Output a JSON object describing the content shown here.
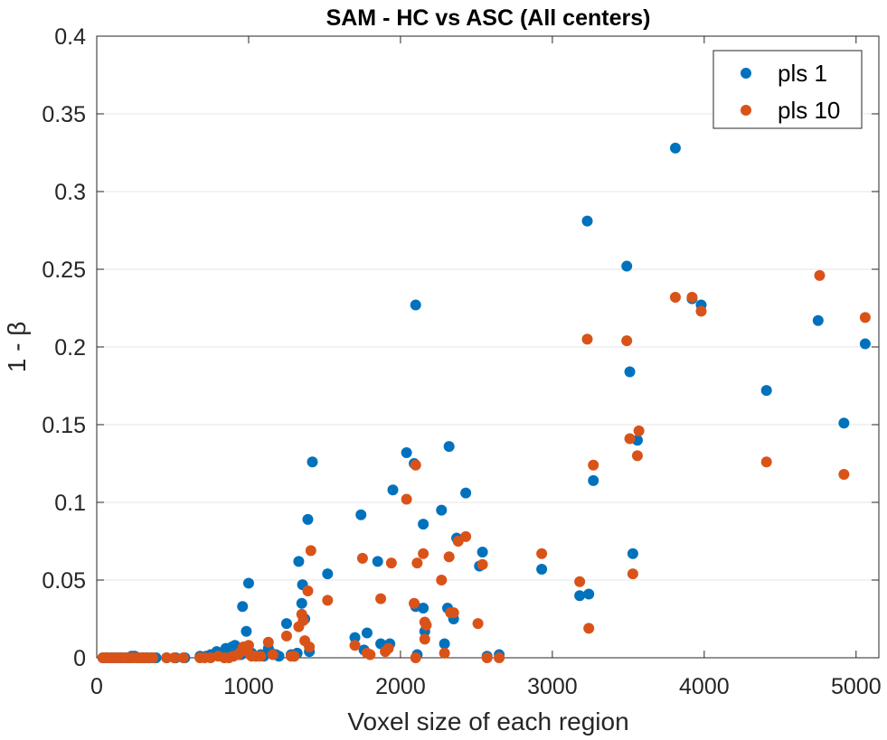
{
  "chart_data": {
    "type": "scatter",
    "title": "SAM - HC vs ASC (All centers)",
    "xlabel": "Voxel size of each region",
    "ylabel": "1 - β",
    "xlim": [
      0,
      5150
    ],
    "ylim": [
      0,
      0.4
    ],
    "x_ticks": [
      "0",
      "1000",
      "2000",
      "3000",
      "4000",
      "5000"
    ],
    "y_ticks": [
      "0",
      "0.05",
      "0.1",
      "0.15",
      "0.2",
      "0.25",
      "0.3",
      "0.35",
      "0.4"
    ],
    "grid": true,
    "legend_position": "top-right",
    "series": [
      {
        "name": "pls 1",
        "color": "#0072BD",
        "points": [
          [
            40,
            0
          ],
          [
            70,
            0
          ],
          [
            100,
            0
          ],
          [
            130,
            0
          ],
          [
            160,
            0
          ],
          [
            190,
            0
          ],
          [
            210,
            0
          ],
          [
            230,
            0.001
          ],
          [
            250,
            0.001
          ],
          [
            270,
            0
          ],
          [
            300,
            0
          ],
          [
            330,
            0
          ],
          [
            360,
            0
          ],
          [
            390,
            0
          ],
          [
            460,
            0
          ],
          [
            520,
            0
          ],
          [
            580,
            0
          ],
          [
            680,
            0.001
          ],
          [
            720,
            0.001
          ],
          [
            750,
            0.002
          ],
          [
            790,
            0.004
          ],
          [
            820,
            0.003
          ],
          [
            850,
            0.006
          ],
          [
            870,
            0.002
          ],
          [
            890,
            0.007
          ],
          [
            910,
            0.008
          ],
          [
            930,
            0.005
          ],
          [
            950,
            0.002
          ],
          [
            960,
            0.033
          ],
          [
            985,
            0.017
          ],
          [
            1000,
            0.048
          ],
          [
            1020,
            0.003
          ],
          [
            1050,
            0.001
          ],
          [
            1080,
            0.002
          ],
          [
            1100,
            0.001
          ],
          [
            1130,
            0.006
          ],
          [
            1150,
            0.003
          ],
          [
            1180,
            0.002
          ],
          [
            1200,
            0.001
          ],
          [
            1250,
            0.022
          ],
          [
            1280,
            0.002
          ],
          [
            1300,
            0.001
          ],
          [
            1320,
            0.003
          ],
          [
            1330,
            0.062
          ],
          [
            1350,
            0.035
          ],
          [
            1355,
            0.047
          ],
          [
            1370,
            0.025
          ],
          [
            1390,
            0.089
          ],
          [
            1420,
            0.126
          ],
          [
            1400,
            0.004
          ],
          [
            1520,
            0.054
          ],
          [
            1700,
            0.013
          ],
          [
            1740,
            0.092
          ],
          [
            1760,
            0.005
          ],
          [
            1780,
            0.016
          ],
          [
            1850,
            0.062
          ],
          [
            1870,
            0.009
          ],
          [
            1900,
            0.007
          ],
          [
            1930,
            0.009
          ],
          [
            1950,
            0.108
          ],
          [
            2040,
            0.132
          ],
          [
            2090,
            0.125
          ],
          [
            2100,
            0.227
          ],
          [
            2100,
            0.033
          ],
          [
            2110,
            0.002
          ],
          [
            2150,
            0.086
          ],
          [
            2150,
            0.032
          ],
          [
            2160,
            0.017
          ],
          [
            2270,
            0.095
          ],
          [
            2290,
            0.009
          ],
          [
            2310,
            0.032
          ],
          [
            2320,
            0.136
          ],
          [
            2350,
            0.025
          ],
          [
            2370,
            0.077
          ],
          [
            2430,
            0.106
          ],
          [
            2520,
            0.059
          ],
          [
            2540,
            0.068
          ],
          [
            2570,
            0.001
          ],
          [
            2650,
            0.002
          ],
          [
            2930,
            0.057
          ],
          [
            3180,
            0.04
          ],
          [
            3230,
            0.281
          ],
          [
            3240,
            0.041
          ],
          [
            3270,
            0.114
          ],
          [
            3490,
            0.252
          ],
          [
            3510,
            0.184
          ],
          [
            3530,
            0.067
          ],
          [
            3560,
            0.14
          ],
          [
            3810,
            0.328
          ],
          [
            3920,
            0.231
          ],
          [
            3980,
            0.227
          ],
          [
            4410,
            0.172
          ],
          [
            4750,
            0.217
          ],
          [
            4920,
            0.151
          ],
          [
            5060,
            0.202
          ]
        ]
      },
      {
        "name": "pls 10",
        "color": "#D95319",
        "points": [
          [
            40,
            0
          ],
          [
            60,
            0
          ],
          [
            90,
            0
          ],
          [
            120,
            0
          ],
          [
            150,
            0
          ],
          [
            170,
            0
          ],
          [
            200,
            0
          ],
          [
            220,
            0
          ],
          [
            240,
            0
          ],
          [
            260,
            0
          ],
          [
            280,
            0
          ],
          [
            310,
            0
          ],
          [
            340,
            0
          ],
          [
            370,
            0
          ],
          [
            460,
            0
          ],
          [
            510,
            0
          ],
          [
            570,
            0
          ],
          [
            680,
            0
          ],
          [
            710,
            0
          ],
          [
            750,
            0
          ],
          [
            800,
            0.001
          ],
          [
            840,
            0
          ],
          [
            870,
            0
          ],
          [
            900,
            0.001
          ],
          [
            930,
            0.002
          ],
          [
            950,
            0.004
          ],
          [
            965,
            0.007
          ],
          [
            980,
            0.005
          ],
          [
            1000,
            0.008
          ],
          [
            1010,
            0.002
          ],
          [
            1020,
            0.001
          ],
          [
            1050,
            0.001
          ],
          [
            1080,
            0.001
          ],
          [
            1130,
            0.01
          ],
          [
            1160,
            0.002
          ],
          [
            1250,
            0.014
          ],
          [
            1280,
            0.001
          ],
          [
            1300,
            0.001
          ],
          [
            1330,
            0.02
          ],
          [
            1350,
            0.028
          ],
          [
            1360,
            0.024
          ],
          [
            1370,
            0.011
          ],
          [
            1390,
            0.043
          ],
          [
            1410,
            0.069
          ],
          [
            1400,
            0.007
          ],
          [
            1520,
            0.037
          ],
          [
            1700,
            0.008
          ],
          [
            1750,
            0.064
          ],
          [
            1780,
            0.003
          ],
          [
            1800,
            0.002
          ],
          [
            1870,
            0.038
          ],
          [
            1900,
            0.004
          ],
          [
            1920,
            0.006
          ],
          [
            1940,
            0.061
          ],
          [
            2040,
            0.102
          ],
          [
            2090,
            0.035
          ],
          [
            2100,
            0.124
          ],
          [
            2110,
            0.061
          ],
          [
            2100,
            0
          ],
          [
            2150,
            0.067
          ],
          [
            2160,
            0.023
          ],
          [
            2160,
            0.012
          ],
          [
            2170,
            0.021
          ],
          [
            2270,
            0.05
          ],
          [
            2290,
            0.003
          ],
          [
            2320,
            0.065
          ],
          [
            2330,
            0.029
          ],
          [
            2350,
            0.029
          ],
          [
            2380,
            0.075
          ],
          [
            2430,
            0.078
          ],
          [
            2510,
            0.022
          ],
          [
            2540,
            0.06
          ],
          [
            2570,
            0
          ],
          [
            2650,
            0
          ],
          [
            2930,
            0.067
          ],
          [
            3180,
            0.049
          ],
          [
            3230,
            0.205
          ],
          [
            3240,
            0.019
          ],
          [
            3270,
            0.124
          ],
          [
            3490,
            0.204
          ],
          [
            3510,
            0.141
          ],
          [
            3530,
            0.054
          ],
          [
            3560,
            0.13
          ],
          [
            3570,
            0.146
          ],
          [
            3810,
            0.232
          ],
          [
            3920,
            0.232
          ],
          [
            3980,
            0.223
          ],
          [
            4410,
            0.126
          ],
          [
            4760,
            0.246
          ],
          [
            4920,
            0.118
          ],
          [
            5060,
            0.219
          ]
        ]
      }
    ]
  }
}
